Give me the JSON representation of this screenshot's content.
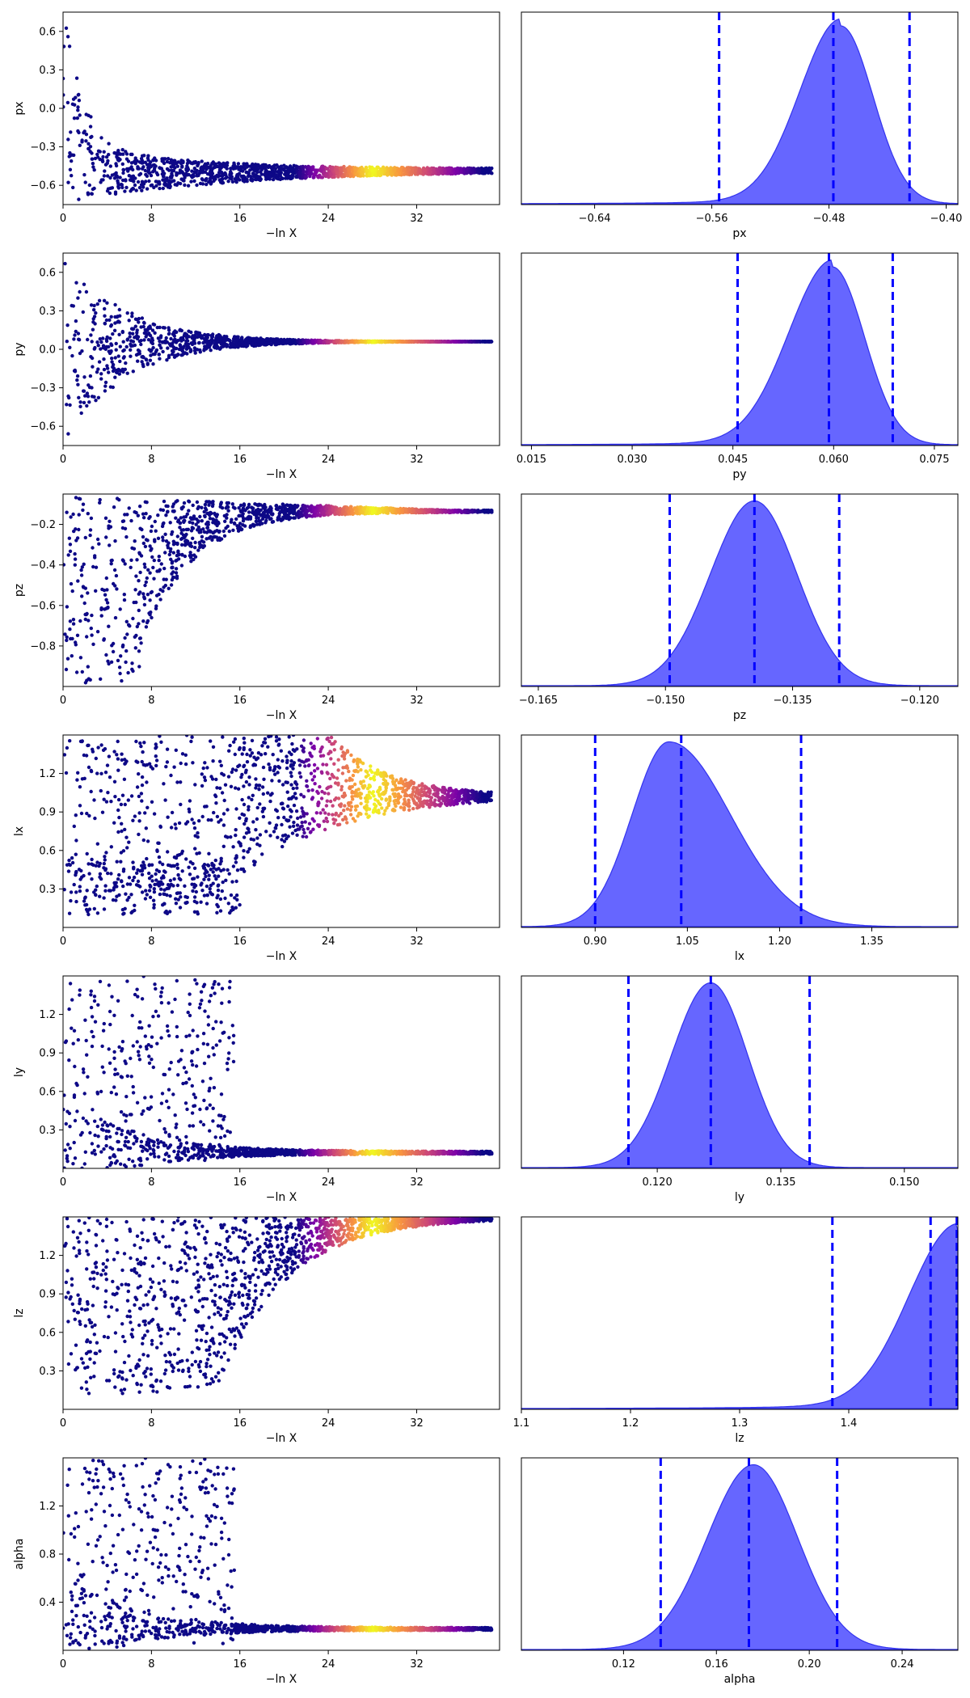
{
  "colors": {
    "trace_low": "#0d0887",
    "trace_mid": "#cc4778",
    "trace_high": "#f0f921",
    "kde_fill": "#6666ff",
    "kde_edge": "#3333ee",
    "quantile_line": "#0000ff"
  },
  "chart_data": [
    {
      "type": "scatter",
      "role": "trace",
      "param": "px",
      "ylabel": "px",
      "xlabel": "−ln X",
      "xlim": [
        0,
        39.5
      ],
      "ylim": [
        -0.75,
        0.75
      ],
      "xticks": [
        "0",
        "8",
        "16",
        "24",
        "32"
      ],
      "xtick_values": [
        0,
        8,
        16,
        24,
        32
      ],
      "yticks": [
        "0.6",
        "0.3",
        "0.0",
        "−0.3",
        "−0.6"
      ],
      "ytick_values": [
        0.6,
        0.3,
        0.0,
        -0.3,
        -0.6
      ],
      "converge_to": -0.47,
      "band_low": [
        -0.75,
        -0.72
      ],
      "band_high": [
        0.75,
        -0.25
      ],
      "shape": "decay_from_top",
      "pts": 1500
    },
    {
      "type": "area",
      "role": "posterior",
      "param": "px",
      "xlabel": "px",
      "xlim": [
        -0.69,
        -0.392
      ],
      "xticks": [
        "−0.64",
        "−0.56",
        "−0.48",
        "−0.40"
      ],
      "xtick_values": [
        -0.64,
        -0.56,
        -0.48,
        -0.4
      ],
      "quantiles": [
        -0.555,
        -0.477,
        -0.425
      ],
      "peak": -0.472,
      "sigma_left": 0.028,
      "sigma_right": 0.022,
      "tail_left": 0.06
    },
    {
      "type": "scatter",
      "role": "trace",
      "param": "py",
      "ylabel": "py",
      "xlabel": "−ln X",
      "xlim": [
        0,
        39.5
      ],
      "ylim": [
        -0.75,
        0.75
      ],
      "xticks": [
        "0",
        "8",
        "16",
        "24",
        "32"
      ],
      "xtick_values": [
        0,
        8,
        16,
        24,
        32
      ],
      "yticks": [
        "0.6",
        "0.3",
        "0.0",
        "−0.3",
        "−0.6"
      ],
      "ytick_values": [
        0.6,
        0.3,
        0.0,
        -0.3,
        -0.6
      ],
      "converge_to": 0.06,
      "band_low": [
        -0.75,
        0.04
      ],
      "band_high": [
        0.75,
        0.08
      ],
      "shape": "funnel",
      "pts": 1500
    },
    {
      "type": "area",
      "role": "posterior",
      "param": "py",
      "xlabel": "py",
      "xlim": [
        0.0135,
        0.0785
      ],
      "xticks": [
        "0.015",
        "0.030",
        "0.045",
        "0.060",
        "0.075"
      ],
      "xtick_values": [
        0.015,
        0.03,
        0.045,
        0.06,
        0.075
      ],
      "quantiles": [
        0.0457,
        0.0593,
        0.0688
      ],
      "peak": 0.0598,
      "sigma_left": 0.0065,
      "sigma_right": 0.0048,
      "tail_left": 0.012
    },
    {
      "type": "scatter",
      "role": "trace",
      "param": "pz",
      "ylabel": "pz",
      "xlabel": "−ln X",
      "xlim": [
        0,
        39.5
      ],
      "ylim": [
        -1.0,
        -0.05
      ],
      "xticks": [
        "0",
        "8",
        "16",
        "24",
        "32"
      ],
      "xtick_values": [
        0,
        8,
        16,
        24,
        32
      ],
      "yticks": [
        "−0.2",
        "−0.4",
        "−0.6",
        "−0.8"
      ],
      "ytick_values": [
        -0.2,
        -0.4,
        -0.6,
        -0.8
      ],
      "converge_to": -0.14,
      "band_low": [
        -1.0,
        -0.17
      ],
      "band_high": [
        -0.05,
        -0.11
      ],
      "shape": "rise_from_bottom",
      "pts": 1500
    },
    {
      "type": "area",
      "role": "posterior",
      "param": "pz",
      "xlabel": "pz",
      "xlim": [
        -0.167,
        -0.1155
      ],
      "xticks": [
        "−0.165",
        "−0.150",
        "−0.135",
        "−0.120"
      ],
      "xtick_values": [
        -0.165,
        -0.15,
        -0.135,
        -0.12
      ],
      "quantiles": [
        -0.1495,
        -0.1395,
        -0.1295
      ],
      "peak": -0.1395,
      "sigma_left": 0.0052,
      "sigma_right": 0.005,
      "tail_left": 0
    },
    {
      "type": "scatter",
      "role": "trace",
      "param": "lx",
      "ylabel": "lx",
      "xlabel": "−ln X",
      "xlim": [
        0,
        39.5
      ],
      "ylim": [
        0.0,
        1.5
      ],
      "xticks": [
        "0",
        "8",
        "16",
        "24",
        "32"
      ],
      "xtick_values": [
        0,
        8,
        16,
        24,
        32
      ],
      "yticks": [
        "1.2",
        "0.9",
        "0.6",
        "0.3"
      ],
      "ytick_values": [
        1.2,
        0.9,
        0.6,
        0.3
      ],
      "converge_to": 1.03,
      "band_low": [
        0.05,
        0.95
      ],
      "band_high": [
        1.5,
        1.08
      ],
      "shape": "wedge",
      "pts": 1500
    },
    {
      "type": "area",
      "role": "posterior",
      "param": "lx",
      "xlabel": "lx",
      "xlim": [
        0.78,
        1.49
      ],
      "xticks": [
        "0.90",
        "1.05",
        "1.20",
        "1.35"
      ],
      "xtick_values": [
        0.9,
        1.05,
        1.2,
        1.35
      ],
      "quantiles": [
        0.9,
        1.04,
        1.235
      ],
      "peak": 1.02,
      "sigma_left": 0.06,
      "sigma_right": 0.1,
      "tail_left": 0
    },
    {
      "type": "scatter",
      "role": "trace",
      "param": "ly",
      "ylabel": "ly",
      "xlabel": "−ln X",
      "xlim": [
        0,
        39.5
      ],
      "ylim": [
        0.0,
        1.5
      ],
      "xticks": [
        "0",
        "8",
        "16",
        "24",
        "32"
      ],
      "xtick_values": [
        0,
        8,
        16,
        24,
        32
      ],
      "yticks": [
        "1.2",
        "0.9",
        "0.6",
        "0.3"
      ],
      "ytick_values": [
        1.2,
        0.9,
        0.6,
        0.3
      ],
      "converge_to": 0.12,
      "band_low": [
        0.02,
        0.11
      ],
      "band_high": [
        1.5,
        0.14
      ],
      "shape": "cloud_then_line",
      "pts": 1500
    },
    {
      "type": "area",
      "role": "posterior",
      "param": "ly",
      "xlabel": "ly",
      "xlim": [
        0.1035,
        0.1565
      ],
      "xticks": [
        "0.120",
        "0.135",
        "0.150"
      ],
      "xtick_values": [
        0.12,
        0.135,
        0.15
      ],
      "quantiles": [
        0.1165,
        0.1265,
        0.1385
      ],
      "peak": 0.1265,
      "sigma_left": 0.0048,
      "sigma_right": 0.0045,
      "tail_left": 0
    },
    {
      "type": "scatter",
      "role": "trace",
      "param": "lz",
      "ylabel": "lz",
      "xlabel": "−ln X",
      "xlim": [
        0,
        39.5
      ],
      "ylim": [
        0.0,
        1.5
      ],
      "xticks": [
        "0",
        "8",
        "16",
        "24",
        "32"
      ],
      "xtick_values": [
        0,
        8,
        16,
        24,
        32
      ],
      "yticks": [
        "1.2",
        "0.9",
        "0.6",
        "0.3"
      ],
      "ytick_values": [
        1.2,
        0.9,
        0.6,
        0.3
      ],
      "converge_to": 1.49,
      "band_low": [
        0.03,
        1.45
      ],
      "band_high": [
        1.5,
        1.5
      ],
      "shape": "rise_to_top",
      "pts": 1500
    },
    {
      "type": "area",
      "role": "posterior",
      "param": "lz",
      "xlabel": "lz",
      "xlim": [
        1.1,
        1.5
      ],
      "xticks": [
        "1.1",
        "1.2",
        "1.3",
        "1.4"
      ],
      "xtick_values": [
        1.1,
        1.2,
        1.3,
        1.4
      ],
      "quantiles": [
        1.385,
        1.475,
        1.499
      ],
      "peak": 1.5,
      "sigma_left": 0.045,
      "sigma_right": 0.002,
      "tail_left": 0.1
    },
    {
      "type": "scatter",
      "role": "trace",
      "param": "alpha",
      "ylabel": "alpha",
      "xlabel": "−ln X",
      "xlim": [
        0,
        39.5
      ],
      "ylim": [
        0.0,
        1.6
      ],
      "xticks": [
        "0",
        "8",
        "16",
        "24",
        "32"
      ],
      "xtick_values": [
        0,
        8,
        16,
        24,
        32
      ],
      "yticks": [
        "1.2",
        "0.8",
        "0.4"
      ],
      "ytick_values": [
        1.2,
        0.8,
        0.4
      ],
      "converge_to": 0.175,
      "band_low": [
        0.0,
        0.16
      ],
      "band_high": [
        1.6,
        0.19
      ],
      "shape": "cloud_then_line",
      "pts": 1500
    },
    {
      "type": "area",
      "role": "posterior",
      "param": "alpha",
      "xlabel": "alpha",
      "xlim": [
        0.076,
        0.264
      ],
      "xticks": [
        "0.12",
        "0.16",
        "0.20",
        "0.24"
      ],
      "xtick_values": [
        0.12,
        0.16,
        0.2,
        0.24
      ],
      "quantiles": [
        0.136,
        0.174,
        0.212
      ],
      "peak": 0.176,
      "sigma_left": 0.02,
      "sigma_right": 0.019,
      "tail_left": 0
    }
  ]
}
